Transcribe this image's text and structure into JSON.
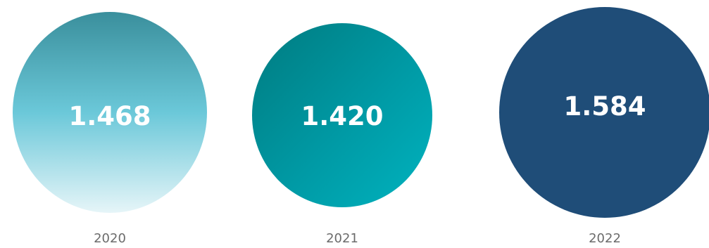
{
  "chart_data": {
    "type": "bubble",
    "categories": [
      "2020",
      "2021",
      "2022"
    ],
    "values": [
      1.468,
      1.42,
      1.584
    ],
    "value_labels": [
      "1.468",
      "1.420",
      "1.584"
    ],
    "colors": [
      {
        "gradient": [
          "#3a8f9c",
          "#6bc8d9",
          "#e6f5f8"
        ]
      },
      {
        "gradient": [
          "#007b80",
          "#009aa5",
          "#00b3bf"
        ]
      },
      {
        "solid": "#1f4d78"
      }
    ]
  }
}
